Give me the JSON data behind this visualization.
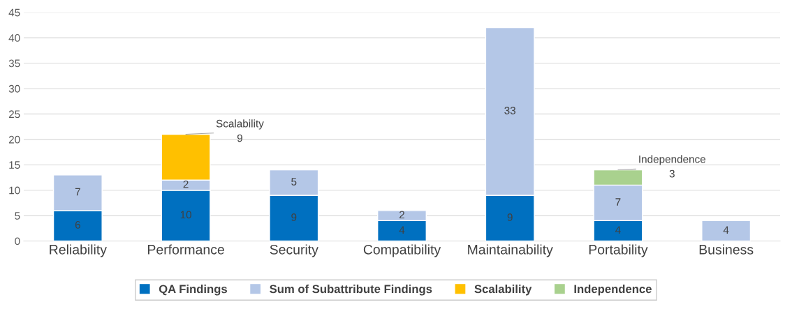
{
  "chart_data": {
    "type": "bar",
    "stacked": true,
    "categories": [
      "Reliability",
      "Performance",
      "Security",
      "Compatibility",
      "Maintainability",
      "Portability",
      "Business"
    ],
    "series": [
      {
        "name": "QA Findings",
        "color": "#0070c0",
        "values": [
          6,
          10,
          9,
          4,
          9,
          4,
          null
        ],
        "value_labels": [
          "6",
          "10",
          "9",
          "4",
          "9",
          "4",
          null
        ]
      },
      {
        "name": "Sum of Subattribute Findings",
        "color": "#b4c7e7",
        "values": [
          7,
          2,
          5,
          2,
          33,
          7,
          4
        ],
        "value_labels": [
          "7",
          "2",
          "5",
          "2",
          "33",
          "7",
          "4"
        ]
      },
      {
        "name": "Scalability",
        "color": "#ffc000",
        "values": [
          null,
          9,
          null,
          null,
          null,
          null,
          null
        ]
      },
      {
        "name": "Independence",
        "color": "#a9d18e",
        "values": [
          null,
          null,
          null,
          null,
          null,
          3,
          null
        ]
      }
    ],
    "annotations": [
      {
        "text": "Scalability\n9",
        "x": "Performance",
        "y": 21
      },
      {
        "text": "Independence\n3",
        "x": "Portability",
        "y": 14
      }
    ],
    "ylim": [
      0,
      45
    ],
    "yticks": [
      0,
      5,
      10,
      15,
      20,
      25,
      30,
      35,
      40,
      45
    ],
    "grid": "y",
    "legend": "bottom"
  }
}
